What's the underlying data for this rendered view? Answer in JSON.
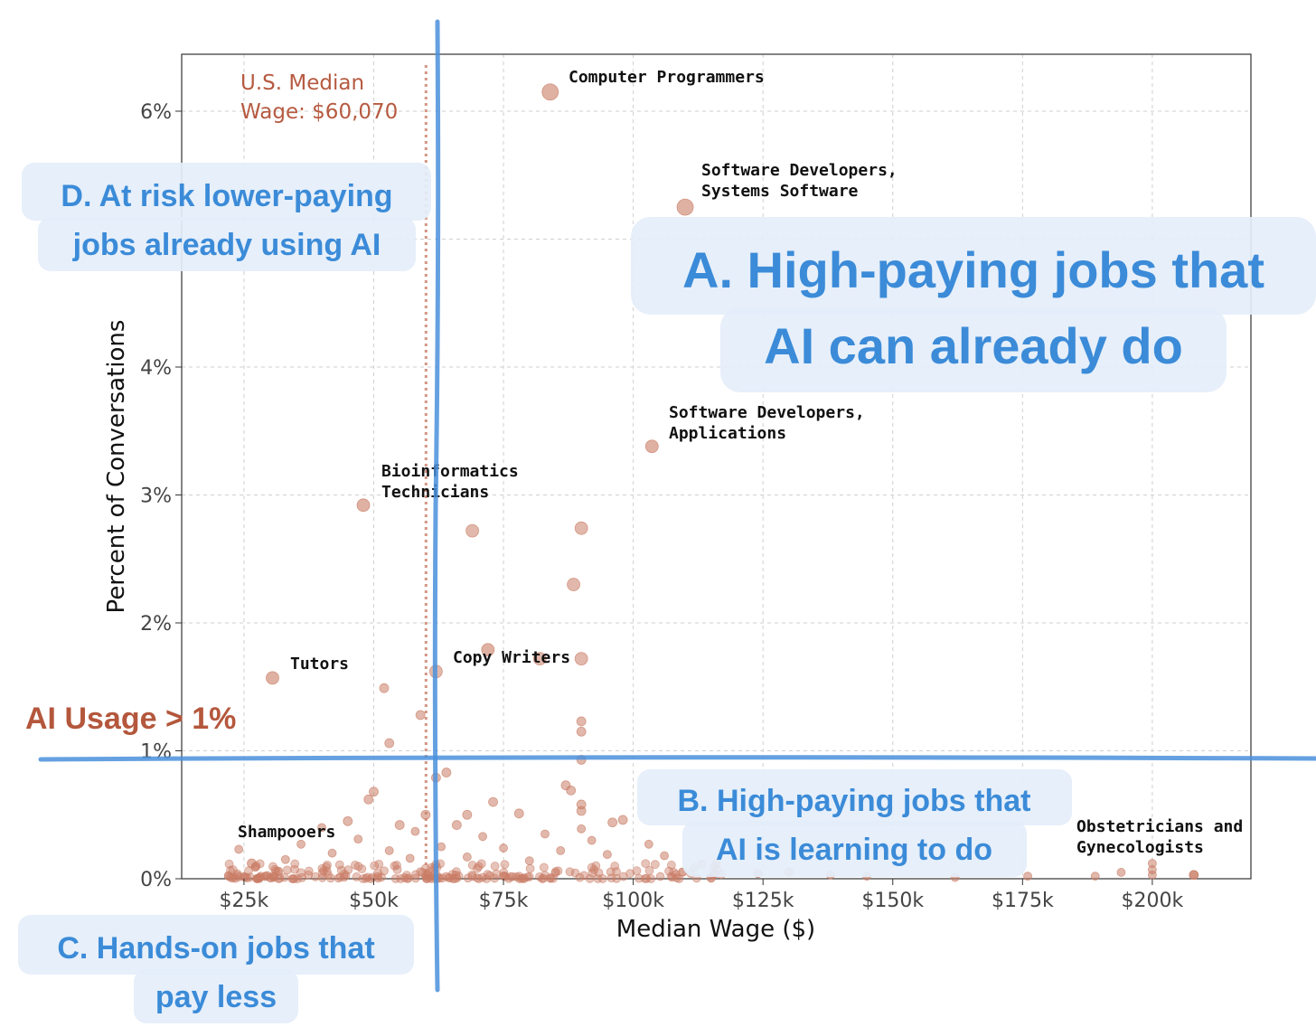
{
  "chart_data": {
    "type": "scatter",
    "xlabel": "Median Wage ($)",
    "ylabel": "Percent of Conversations",
    "xlim": [
      13000,
      219000
    ],
    "ylim": [
      0,
      6.45
    ],
    "x_ticks": [
      {
        "value": 25000,
        "label": "$25k"
      },
      {
        "value": 50000,
        "label": "$50k"
      },
      {
        "value": 75000,
        "label": "$75k"
      },
      {
        "value": 100000,
        "label": "$100k"
      },
      {
        "value": 125000,
        "label": "$125k"
      },
      {
        "value": 150000,
        "label": "$150k"
      },
      {
        "value": 175000,
        "label": "$175k"
      },
      {
        "value": 200000,
        "label": "$200k"
      }
    ],
    "y_ticks": [
      {
        "value": 0,
        "label": "0%"
      },
      {
        "value": 1,
        "label": "1%"
      },
      {
        "value": 2,
        "label": "2%"
      },
      {
        "value": 3,
        "label": "3%"
      },
      {
        "value": 4,
        "label": "4%"
      },
      {
        "value": 6,
        "label": "6%"
      }
    ],
    "grid": true,
    "point_color": "#c97d66",
    "median_wage": {
      "value": 60070,
      "label_line1": "U.S. Median",
      "label_line2": "Wage: $60,070"
    },
    "labeled_points": [
      {
        "name": "Computer Programmers",
        "x": 84000,
        "y": 6.15
      },
      {
        "name": "Software Developers, Systems Software",
        "line1": "Software Developers,",
        "line2": "Systems Software",
        "x": 110000,
        "y": 5.25
      },
      {
        "name": "Software Developers, Applications",
        "line1": "Software Developers,",
        "line2": "Applications",
        "x": 103600,
        "y": 3.38
      },
      {
        "name": "Bioinformatics Technicians",
        "line1": "Bioinformatics",
        "line2": "Technicians",
        "x": 48000,
        "y": 2.92
      },
      {
        "name": "Tutors",
        "x": 30500,
        "y": 1.57
      },
      {
        "name": "Copy Writers",
        "x": 72000,
        "y": 1.79
      },
      {
        "name": "Shampooers",
        "x": 26500,
        "y": 0.12
      },
      {
        "name": "Obstetricians and Gynecologists",
        "line1": "Obstetricians and",
        "line2": "Gynecologists",
        "x": 208000,
        "y": 0.03
      }
    ],
    "points": [
      {
        "x": 69000,
        "y": 2.72
      },
      {
        "x": 90000,
        "y": 2.74
      },
      {
        "x": 88500,
        "y": 2.3
      },
      {
        "x": 62000,
        "y": 1.62
      },
      {
        "x": 52000,
        "y": 1.49
      },
      {
        "x": 59000,
        "y": 1.28
      },
      {
        "x": 53000,
        "y": 1.06
      },
      {
        "x": 82000,
        "y": 1.72
      },
      {
        "x": 90000,
        "y": 1.72
      },
      {
        "x": 90000,
        "y": 1.23
      },
      {
        "x": 90000,
        "y": 1.15
      },
      {
        "x": 90000,
        "y": 0.93
      },
      {
        "x": 64000,
        "y": 0.83
      },
      {
        "x": 62000,
        "y": 0.79
      },
      {
        "x": 87000,
        "y": 0.73
      },
      {
        "x": 88000,
        "y": 0.69
      },
      {
        "x": 50000,
        "y": 0.68
      },
      {
        "x": 49000,
        "y": 0.62
      },
      {
        "x": 73000,
        "y": 0.6
      },
      {
        "x": 90000,
        "y": 0.58
      },
      {
        "x": 90000,
        "y": 0.53
      },
      {
        "x": 60000,
        "y": 0.5
      },
      {
        "x": 78000,
        "y": 0.51
      },
      {
        "x": 68000,
        "y": 0.5
      },
      {
        "x": 96000,
        "y": 0.44
      },
      {
        "x": 98000,
        "y": 0.46
      },
      {
        "x": 45000,
        "y": 0.45
      },
      {
        "x": 55000,
        "y": 0.42
      },
      {
        "x": 90000,
        "y": 0.39
      },
      {
        "x": 66000,
        "y": 0.42
      },
      {
        "x": 40000,
        "y": 0.4
      },
      {
        "x": 58000,
        "y": 0.37
      },
      {
        "x": 83000,
        "y": 0.35
      },
      {
        "x": 71000,
        "y": 0.33
      },
      {
        "x": 92000,
        "y": 0.3
      },
      {
        "x": 47000,
        "y": 0.31
      },
      {
        "x": 36000,
        "y": 0.27
      },
      {
        "x": 103000,
        "y": 0.27
      },
      {
        "x": 63000,
        "y": 0.25
      },
      {
        "x": 75000,
        "y": 0.24
      },
      {
        "x": 86000,
        "y": 0.22
      },
      {
        "x": 53000,
        "y": 0.22
      },
      {
        "x": 42000,
        "y": 0.2
      },
      {
        "x": 24000,
        "y": 0.23
      },
      {
        "x": 95000,
        "y": 0.19
      },
      {
        "x": 106000,
        "y": 0.18
      },
      {
        "x": 68000,
        "y": 0.17
      },
      {
        "x": 57000,
        "y": 0.16
      },
      {
        "x": 33000,
        "y": 0.15
      },
      {
        "x": 80000,
        "y": 0.14
      },
      {
        "x": 116000,
        "y": 0.12
      },
      {
        "x": 200000,
        "y": 0.12
      },
      {
        "x": 200000,
        "y": 0.07
      },
      {
        "x": 200000,
        "y": 0.03
      },
      {
        "x": 208000,
        "y": 0.03
      },
      {
        "x": 194000,
        "y": 0.05
      },
      {
        "x": 189000,
        "y": 0.02
      },
      {
        "x": 176000,
        "y": 0.02
      },
      {
        "x": 162000,
        "y": 0.01
      },
      {
        "x": 145000,
        "y": 0.02
      },
      {
        "x": 138000,
        "y": 0.03
      },
      {
        "x": 130000,
        "y": 0.05
      },
      {
        "x": 124000,
        "y": 0.04
      }
    ],
    "dense_cluster": {
      "x_min": 22000,
      "x_max": 120000,
      "y_max": 0.12,
      "count": 230
    },
    "annotations": {
      "quadrant_a": {
        "line1": "A. High-paying jobs that",
        "line2": "AI can already do"
      },
      "quadrant_b": {
        "line1": "B. High-paying jobs that",
        "line2": "AI is learning to do"
      },
      "quadrant_c": {
        "line1": "C. Hands-on jobs that",
        "line2": "pay less"
      },
      "quadrant_d": {
        "line1": "D. At risk lower-paying",
        "line2": "jobs already using AI"
      },
      "usage_threshold": {
        "label": "AI Usage > 1%",
        "value": 0.93
      }
    },
    "annotation_colors": {
      "quadrant_text": "#3b8bd8",
      "quadrant_bg": "#e4eefa",
      "divider": "#4a90dc",
      "usage": "#b4573c",
      "median": "#b65a40"
    }
  }
}
